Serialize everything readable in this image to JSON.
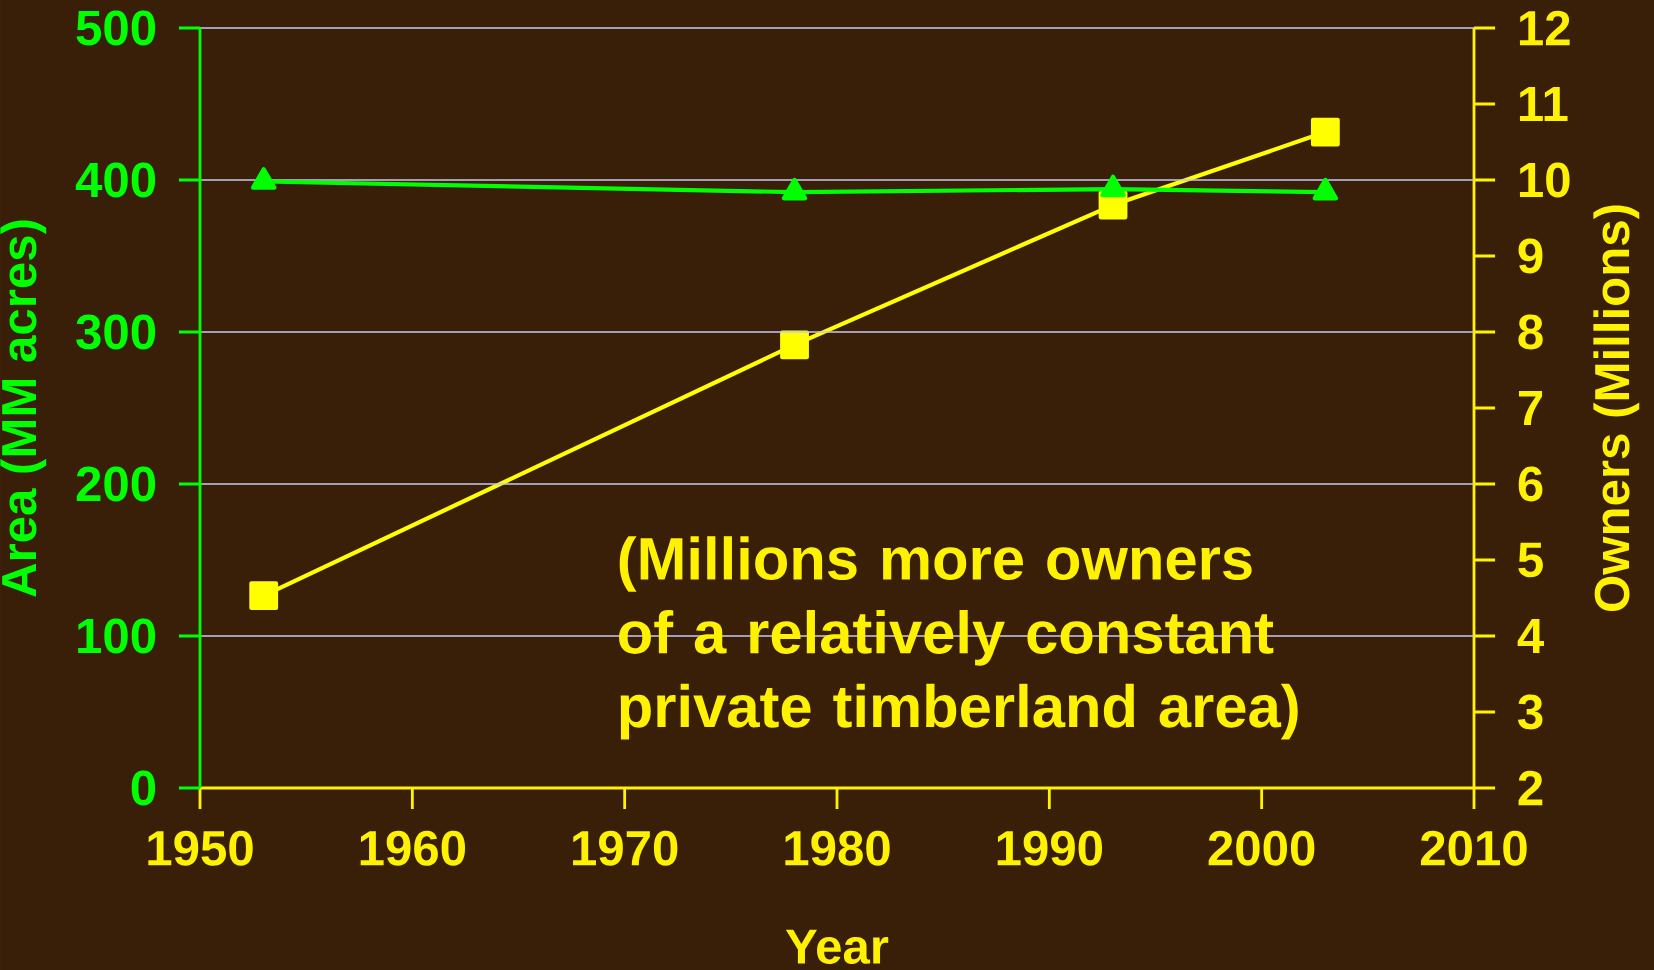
{
  "chart_data": {
    "type": "line",
    "xlabel": "Year",
    "ylabel": "Area (MM acres)",
    "y2label": "Owners (Millions)",
    "x": [
      1953,
      1978,
      1993,
      2003
    ],
    "series": [
      {
        "color": "#00ff00",
        "values": [
          399,
          392,
          394,
          392
        ],
        "marker": "triangle"
      },
      {
        "color": "#ffff00",
        "values": [
          4.53,
          7.83,
          9.67,
          10.63
        ],
        "marker": "square",
        "axis": "y2"
      }
    ],
    "xlim": [
      1950,
      2010
    ],
    "xticks": [
      1950,
      1960,
      1970,
      1980,
      1990,
      2000,
      2010
    ],
    "ylim": [
      0,
      500
    ],
    "yticks": [
      0,
      100,
      200,
      300,
      400,
      500
    ],
    "y2lim": [
      2,
      12
    ],
    "y2ticks": [
      2,
      3,
      4,
      5,
      6,
      7,
      8,
      9,
      10,
      11,
      12
    ],
    "grid": "y",
    "annotations": [
      "(Millions more owners of a relatively constant private timberland area)"
    ]
  }
}
